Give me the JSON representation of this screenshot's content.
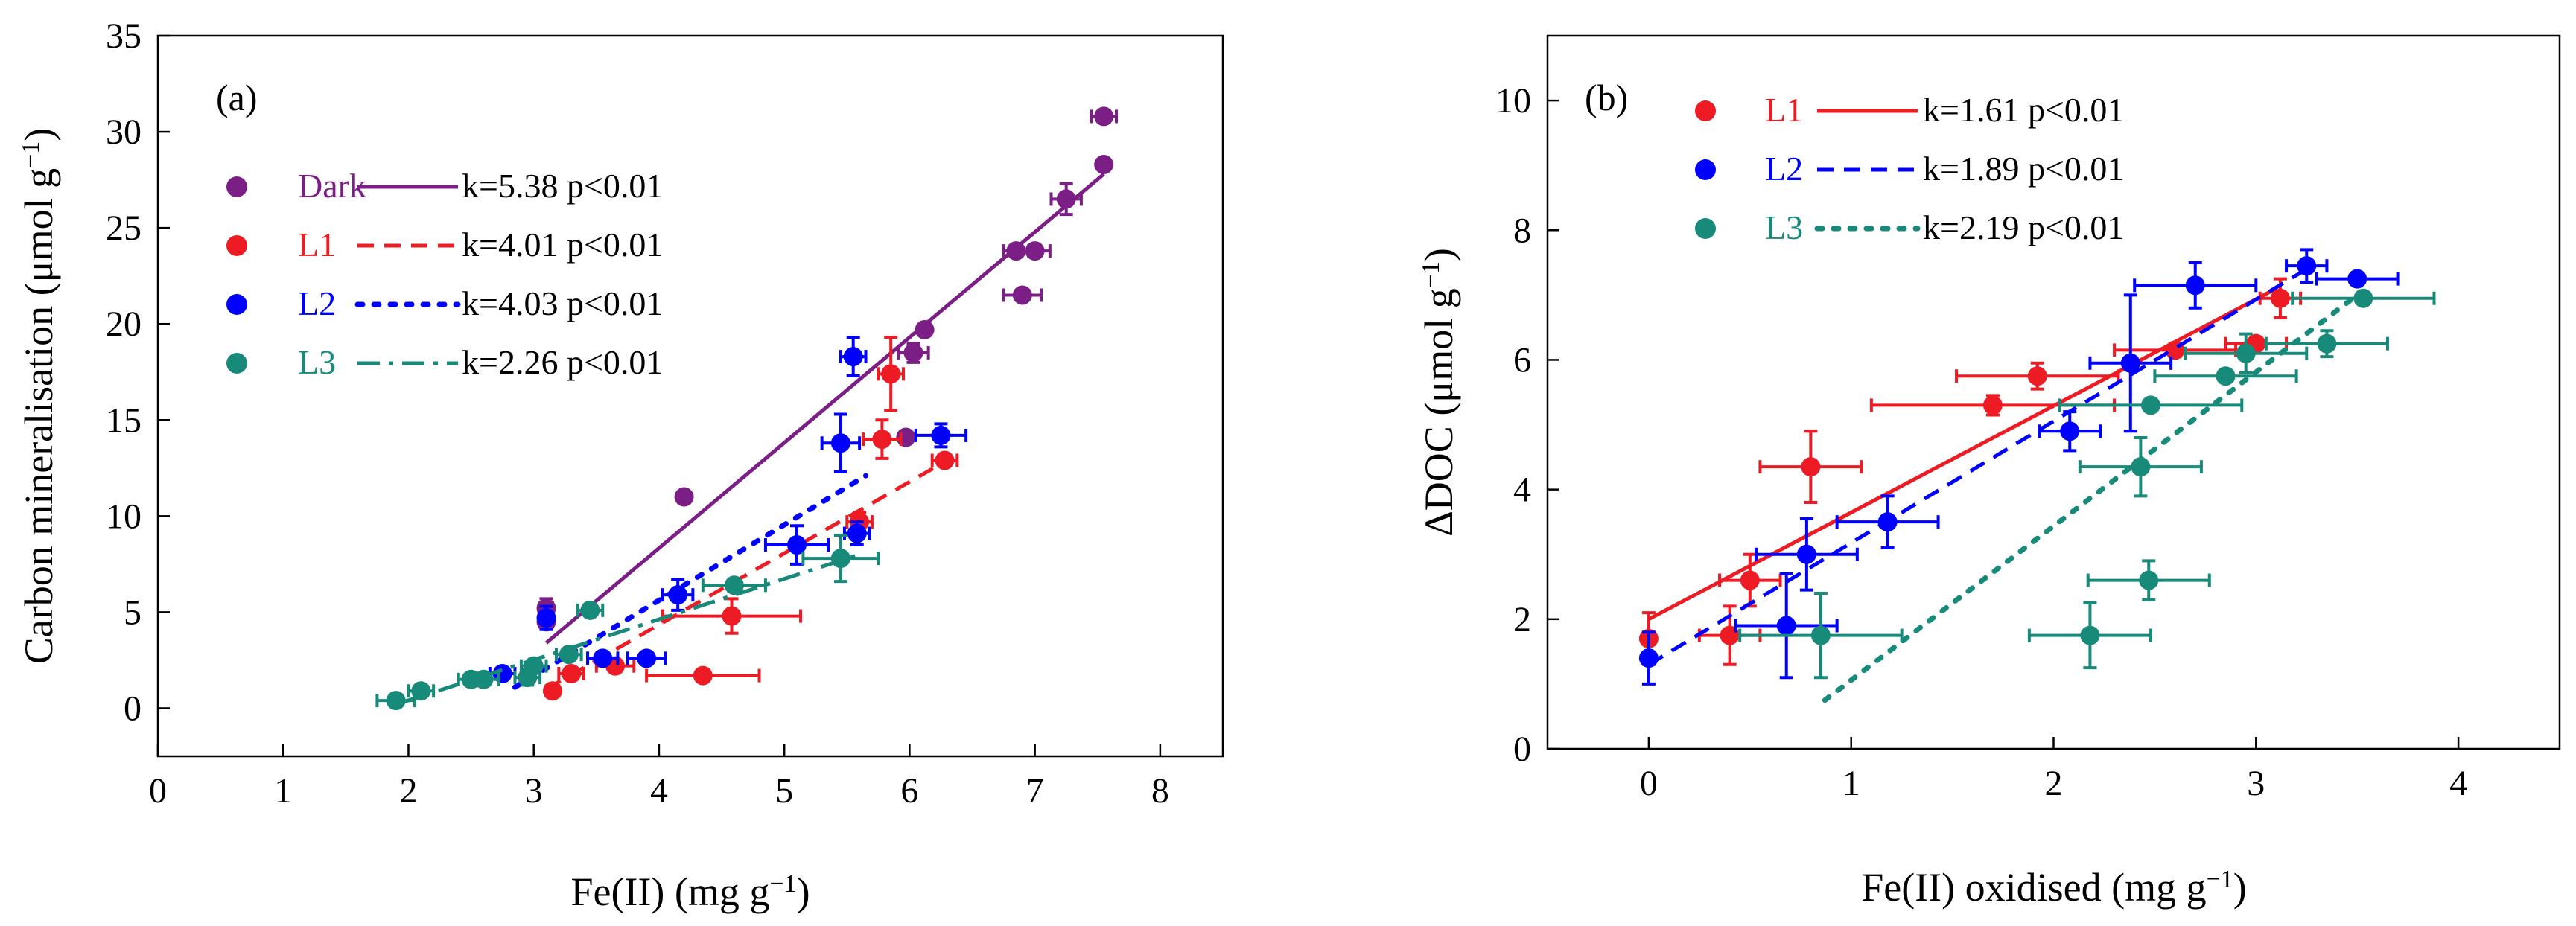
{
  "chart_data": [
    {
      "type": "scatter",
      "panel_label": "(a)",
      "xlabel": "Fe(II) (mg g⁻¹)",
      "ylabel": "Carbon mineralisation (μmol g⁻¹)",
      "xlim": [
        0,
        8.5
      ],
      "ylim": [
        -2.5,
        35
      ],
      "xticks": [
        "0",
        "1",
        "2",
        "3",
        "4",
        "5",
        "6",
        "7",
        "8"
      ],
      "yticks": [
        "0",
        "5",
        "10",
        "15",
        "20",
        "25",
        "30",
        "35"
      ],
      "legend_position": "top-left",
      "series": [
        {
          "name": "Dark",
          "color": "#7B1F86",
          "line_style": "solid",
          "fit_label": "k=5.38 p<0.01",
          "fit_line": [
            [
              3.1,
              3.4
            ],
            [
              7.55,
              27.8
            ]
          ],
          "points": [
            {
              "x": 3.1,
              "y": 5.2,
              "xerr": 0.05,
              "yerr": 0.5
            },
            {
              "x": 3.1,
              "y": 4.5,
              "xerr": 0.05,
              "yerr": 0.4
            },
            {
              "x": 4.2,
              "y": 11.0,
              "xerr": 0,
              "yerr": 0
            },
            {
              "x": 5.97,
              "y": 14.1,
              "xerr": 0,
              "yerr": 0
            },
            {
              "x": 6.03,
              "y": 18.5,
              "xerr": 0.12,
              "yerr": 0.5
            },
            {
              "x": 6.12,
              "y": 19.7,
              "xerr": 0,
              "yerr": 0
            },
            {
              "x": 6.85,
              "y": 23.8,
              "xerr": 0.1,
              "yerr": 0
            },
            {
              "x": 7.0,
              "y": 23.8,
              "xerr": 0.12,
              "yerr": 0
            },
            {
              "x": 6.9,
              "y": 21.5,
              "xerr": 0.15,
              "yerr": 0
            },
            {
              "x": 7.25,
              "y": 26.5,
              "xerr": 0.12,
              "yerr": 0.8
            },
            {
              "x": 7.55,
              "y": 28.3,
              "xerr": 0,
              "yerr": 0
            },
            {
              "x": 7.55,
              "y": 30.8,
              "xerr": 0.1,
              "yerr": 0
            }
          ]
        },
        {
          "name": "L1",
          "color": "#ED1C24",
          "line_style": "dashed",
          "fit_label": "k=4.01 p<0.01",
          "fit_line": [
            [
              3.1,
              1.0
            ],
            [
              6.3,
              12.9
            ]
          ],
          "points": [
            {
              "x": 3.15,
              "y": 0.9,
              "xerr": 0.05,
              "yerr": 0.3
            },
            {
              "x": 3.3,
              "y": 1.8,
              "xerr": 0.1,
              "yerr": 0.3
            },
            {
              "x": 3.65,
              "y": 2.2,
              "xerr": 0.15,
              "yerr": 0
            },
            {
              "x": 4.35,
              "y": 1.7,
              "xerr": 0.45,
              "yerr": 0
            },
            {
              "x": 4.58,
              "y": 4.8,
              "xerr": 0.55,
              "yerr": 0.9
            },
            {
              "x": 5.6,
              "y": 9.7,
              "xerr": 0.1,
              "yerr": 0.5
            },
            {
              "x": 5.78,
              "y": 14.0,
              "xerr": 0.15,
              "yerr": 1.0
            },
            {
              "x": 5.85,
              "y": 17.4,
              "xerr": 0.1,
              "yerr": 1.9
            },
            {
              "x": 6.28,
              "y": 12.9,
              "xerr": 0.1,
              "yerr": 0
            }
          ]
        },
        {
          "name": "L2",
          "color": "#0000FF",
          "line_style": "dotted",
          "fit_label": "k=4.03 p<0.01",
          "fit_line": [
            [
              2.85,
              1.1
            ],
            [
              5.65,
              12.1
            ]
          ],
          "points": [
            {
              "x": 3.1,
              "y": 4.7,
              "xerr": 0.05,
              "yerr": 0.6
            },
            {
              "x": 2.75,
              "y": 1.8,
              "xerr": 0.1,
              "yerr": 0
            },
            {
              "x": 3.55,
              "y": 2.6,
              "xerr": 0.12,
              "yerr": 0
            },
            {
              "x": 3.9,
              "y": 2.6,
              "xerr": 0.15,
              "yerr": 0
            },
            {
              "x": 4.15,
              "y": 5.9,
              "xerr": 0.12,
              "yerr": 0.8
            },
            {
              "x": 5.1,
              "y": 8.5,
              "xerr": 0.25,
              "yerr": 1.0
            },
            {
              "x": 5.45,
              "y": 13.8,
              "xerr": 0.15,
              "yerr": 1.5
            },
            {
              "x": 5.55,
              "y": 18.3,
              "xerr": 0.1,
              "yerr": 1.0
            },
            {
              "x": 5.58,
              "y": 9.1,
              "xerr": 0.1,
              "yerr": 0.6
            },
            {
              "x": 6.25,
              "y": 14.2,
              "xerr": 0.2,
              "yerr": 0.6
            }
          ]
        },
        {
          "name": "L3",
          "color": "#178A7A",
          "line_style": "dash-dot",
          "fit_label": "k=2.26 p<0.01",
          "fit_line": [
            [
              1.9,
              0.2
            ],
            [
              5.6,
              8.0
            ]
          ],
          "points": [
            {
              "x": 1.9,
              "y": 0.4,
              "xerr": 0.15,
              "yerr": 0
            },
            {
              "x": 2.1,
              "y": 0.9,
              "xerr": 0.1,
              "yerr": 0
            },
            {
              "x": 2.5,
              "y": 1.5,
              "xerr": 0.1,
              "yerr": 0
            },
            {
              "x": 2.6,
              "y": 1.5,
              "xerr": 0.12,
              "yerr": 0
            },
            {
              "x": 2.95,
              "y": 1.6,
              "xerr": 0.1,
              "yerr": 0.4
            },
            {
              "x": 3.0,
              "y": 2.2,
              "xerr": 0.1,
              "yerr": 0.3
            },
            {
              "x": 3.28,
              "y": 2.8,
              "xerr": 0.1,
              "yerr": 0
            },
            {
              "x": 3.45,
              "y": 5.1,
              "xerr": 0.1,
              "yerr": 0
            },
            {
              "x": 4.6,
              "y": 6.4,
              "xerr": 0.25,
              "yerr": 0.3
            },
            {
              "x": 5.45,
              "y": 7.8,
              "xerr": 0.3,
              "yerr": 1.2
            }
          ]
        }
      ]
    },
    {
      "type": "scatter",
      "panel_label": "(b)",
      "xlabel": "Fe(II) oxidised (mg g⁻¹)",
      "ylabel": "ΔDOC (μmol g⁻¹)",
      "xlim": [
        -0.5,
        4.5
      ],
      "ylim": [
        0,
        11
      ],
      "xticks": [
        "0",
        "1",
        "2",
        "3",
        "4"
      ],
      "yticks": [
        "0",
        "2",
        "4",
        "6",
        "8",
        "10"
      ],
      "legend_position": "top-left",
      "series": [
        {
          "name": "L1",
          "color": "#ED1C24",
          "line_style": "solid",
          "fit_label": "k=1.61 p<0.01",
          "fit_line": [
            [
              0.0,
              2.0
            ],
            [
              3.1,
              7.1
            ]
          ],
          "points": [
            {
              "x": 0.0,
              "y": 1.7,
              "xerr": 0,
              "yerr": 0.4
            },
            {
              "x": 0.4,
              "y": 1.75,
              "xerr": 0.15,
              "yerr": 0.45
            },
            {
              "x": 0.5,
              "y": 2.6,
              "xerr": 0.15,
              "yerr": 0.4
            },
            {
              "x": 0.8,
              "y": 4.35,
              "xerr": 0.25,
              "yerr": 0.55
            },
            {
              "x": 1.7,
              "y": 5.3,
              "xerr": 0.6,
              "yerr": 0.15
            },
            {
              "x": 1.92,
              "y": 5.75,
              "xerr": 0.4,
              "yerr": 0.2
            },
            {
              "x": 2.6,
              "y": 6.15,
              "xerr": 0.3,
              "yerr": 0.1
            },
            {
              "x": 3.0,
              "y": 6.25,
              "xerr": 0.15,
              "yerr": 0
            },
            {
              "x": 3.12,
              "y": 6.95,
              "xerr": 0.1,
              "yerr": 0.3
            }
          ]
        },
        {
          "name": "L2",
          "color": "#0000FF",
          "line_style": "dashed",
          "fit_label": "k=1.89 p<0.01",
          "fit_line": [
            [
              0.0,
              1.3
            ],
            [
              3.25,
              7.4
            ]
          ],
          "points": [
            {
              "x": 0.0,
              "y": 1.4,
              "xerr": 0,
              "yerr": 0.4
            },
            {
              "x": 0.68,
              "y": 1.9,
              "xerr": 0.25,
              "yerr": 0.8
            },
            {
              "x": 0.78,
              "y": 3.0,
              "xerr": 0.25,
              "yerr": 0.55
            },
            {
              "x": 1.18,
              "y": 3.5,
              "xerr": 0.25,
              "yerr": 0.4
            },
            {
              "x": 2.08,
              "y": 4.9,
              "xerr": 0.15,
              "yerr": 0.3
            },
            {
              "x": 2.38,
              "y": 5.95,
              "xerr": 0.2,
              "yerr": 1.05
            },
            {
              "x": 2.7,
              "y": 7.15,
              "xerr": 0.3,
              "yerr": 0.35
            },
            {
              "x": 3.25,
              "y": 7.45,
              "xerr": 0.1,
              "yerr": 0.25
            },
            {
              "x": 3.5,
              "y": 7.25,
              "xerr": 0.2,
              "yerr": 0
            }
          ]
        },
        {
          "name": "L3",
          "color": "#178A7A",
          "line_style": "dotted",
          "fit_label": "k=2.19 p<0.01",
          "fit_line": [
            [
              0.87,
              0.75
            ],
            [
              3.5,
              7.0
            ]
          ],
          "points": [
            {
              "x": 0.85,
              "y": 1.75,
              "xerr": 0.4,
              "yerr": 0.65
            },
            {
              "x": 2.18,
              "y": 1.75,
              "xerr": 0.3,
              "yerr": 0.5
            },
            {
              "x": 2.47,
              "y": 2.6,
              "xerr": 0.3,
              "yerr": 0.3
            },
            {
              "x": 2.43,
              "y": 4.35,
              "xerr": 0.3,
              "yerr": 0.45
            },
            {
              "x": 2.48,
              "y": 5.3,
              "xerr": 0.45,
              "yerr": 0
            },
            {
              "x": 2.85,
              "y": 5.75,
              "xerr": 0.35,
              "yerr": 0
            },
            {
              "x": 2.95,
              "y": 6.1,
              "xerr": 0.3,
              "yerr": 0.3
            },
            {
              "x": 3.35,
              "y": 6.25,
              "xerr": 0.3,
              "yerr": 0.2
            },
            {
              "x": 3.53,
              "y": 6.95,
              "xerr": 0.35,
              "yerr": 0
            }
          ]
        }
      ]
    }
  ]
}
